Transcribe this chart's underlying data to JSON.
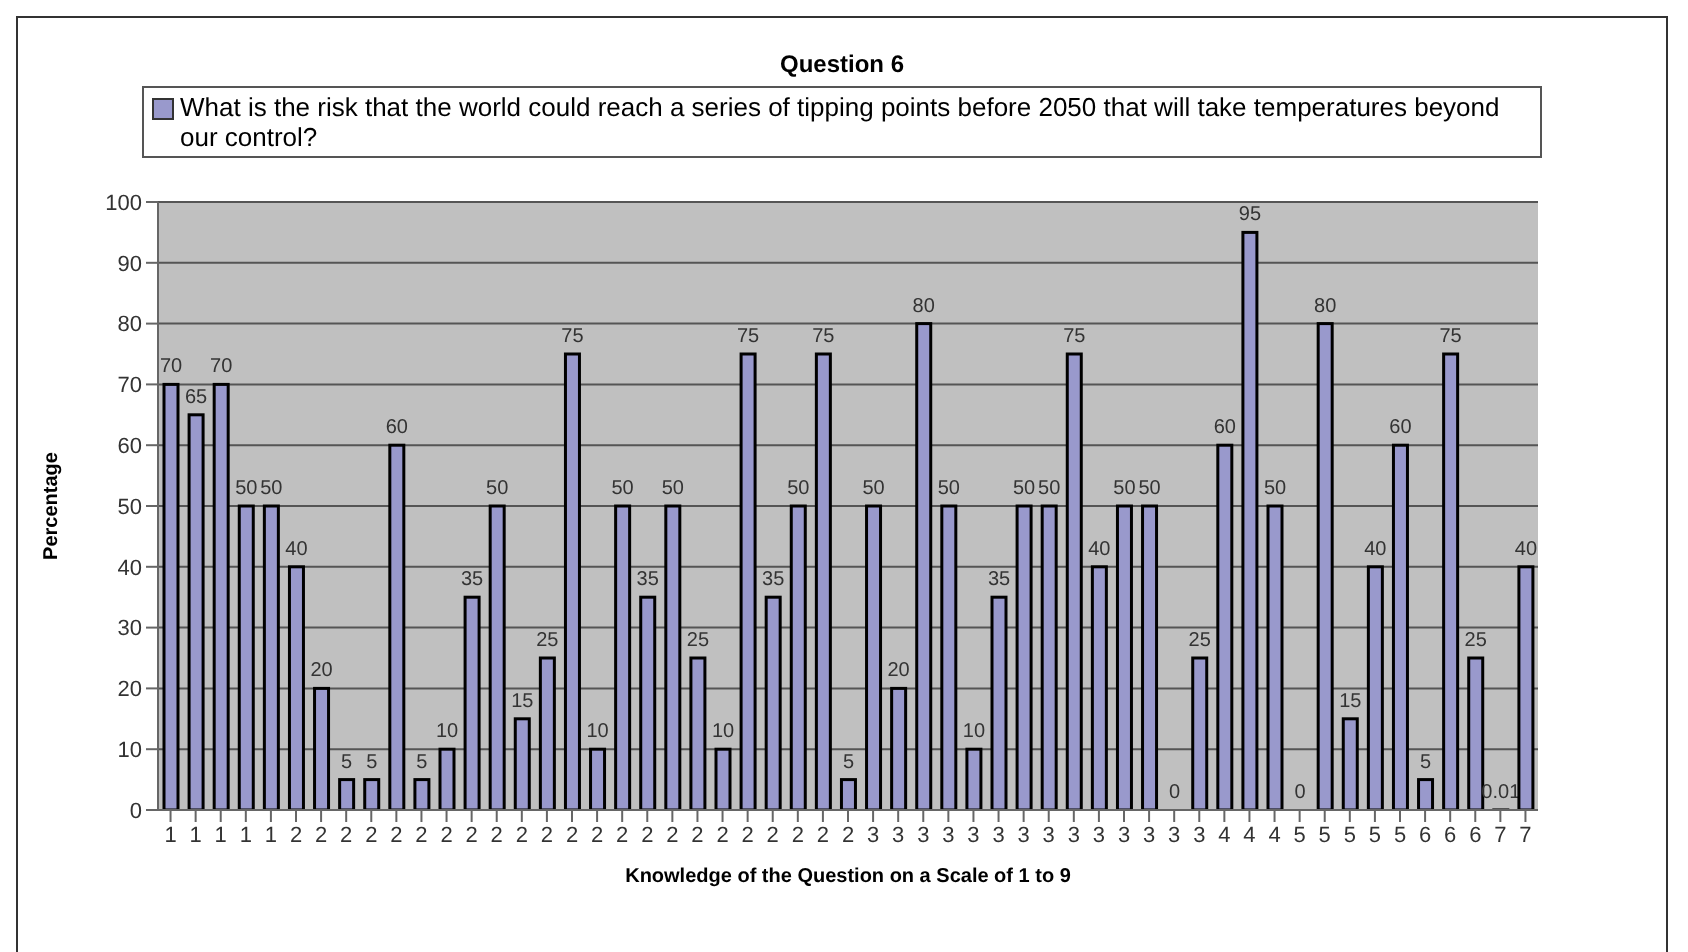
{
  "chart_data": {
    "type": "bar",
    "title": "Question 6",
    "xlabel": "Knowledge of the Question on a Scale of 1 to 9",
    "ylabel": "Percentage",
    "categories": [
      "1",
      "1",
      "1",
      "1",
      "1",
      "2",
      "2",
      "2",
      "2",
      "2",
      "2",
      "2",
      "2",
      "2",
      "2",
      "2",
      "2",
      "2",
      "2",
      "2",
      "2",
      "2",
      "2",
      "2",
      "2",
      "2",
      "2",
      "2",
      "3",
      "3",
      "3",
      "3",
      "3",
      "3",
      "3",
      "3",
      "3",
      "3",
      "3",
      "3",
      "3",
      "3",
      "4",
      "4",
      "4",
      "5",
      "5",
      "5",
      "5",
      "5",
      "6",
      "6",
      "6",
      "7",
      "7"
    ],
    "series": [
      {
        "name": "What is the risk that the world could reach a series of tipping points before 2050 that will take temperatures beyond our control?",
        "color": "#9999cc",
        "values": [
          70,
          65,
          70,
          50,
          50,
          40,
          20,
          5,
          5,
          60,
          5,
          10,
          35,
          50,
          15,
          25,
          75,
          10,
          50,
          35,
          50,
          25,
          10,
          75,
          35,
          50,
          75,
          5,
          50,
          20,
          80,
          50,
          10,
          35,
          50,
          50,
          75,
          40,
          50,
          50,
          0,
          25,
          60,
          95,
          50,
          0,
          80,
          15,
          40,
          60,
          5,
          75,
          25,
          0.01,
          40
        ]
      }
    ],
    "ylim": [
      0,
      100
    ],
    "yticks": [
      0,
      10,
      20,
      30,
      40,
      50,
      60,
      70,
      80,
      90,
      100
    ],
    "grid": "y",
    "legend": "top",
    "data_labels": true
  }
}
